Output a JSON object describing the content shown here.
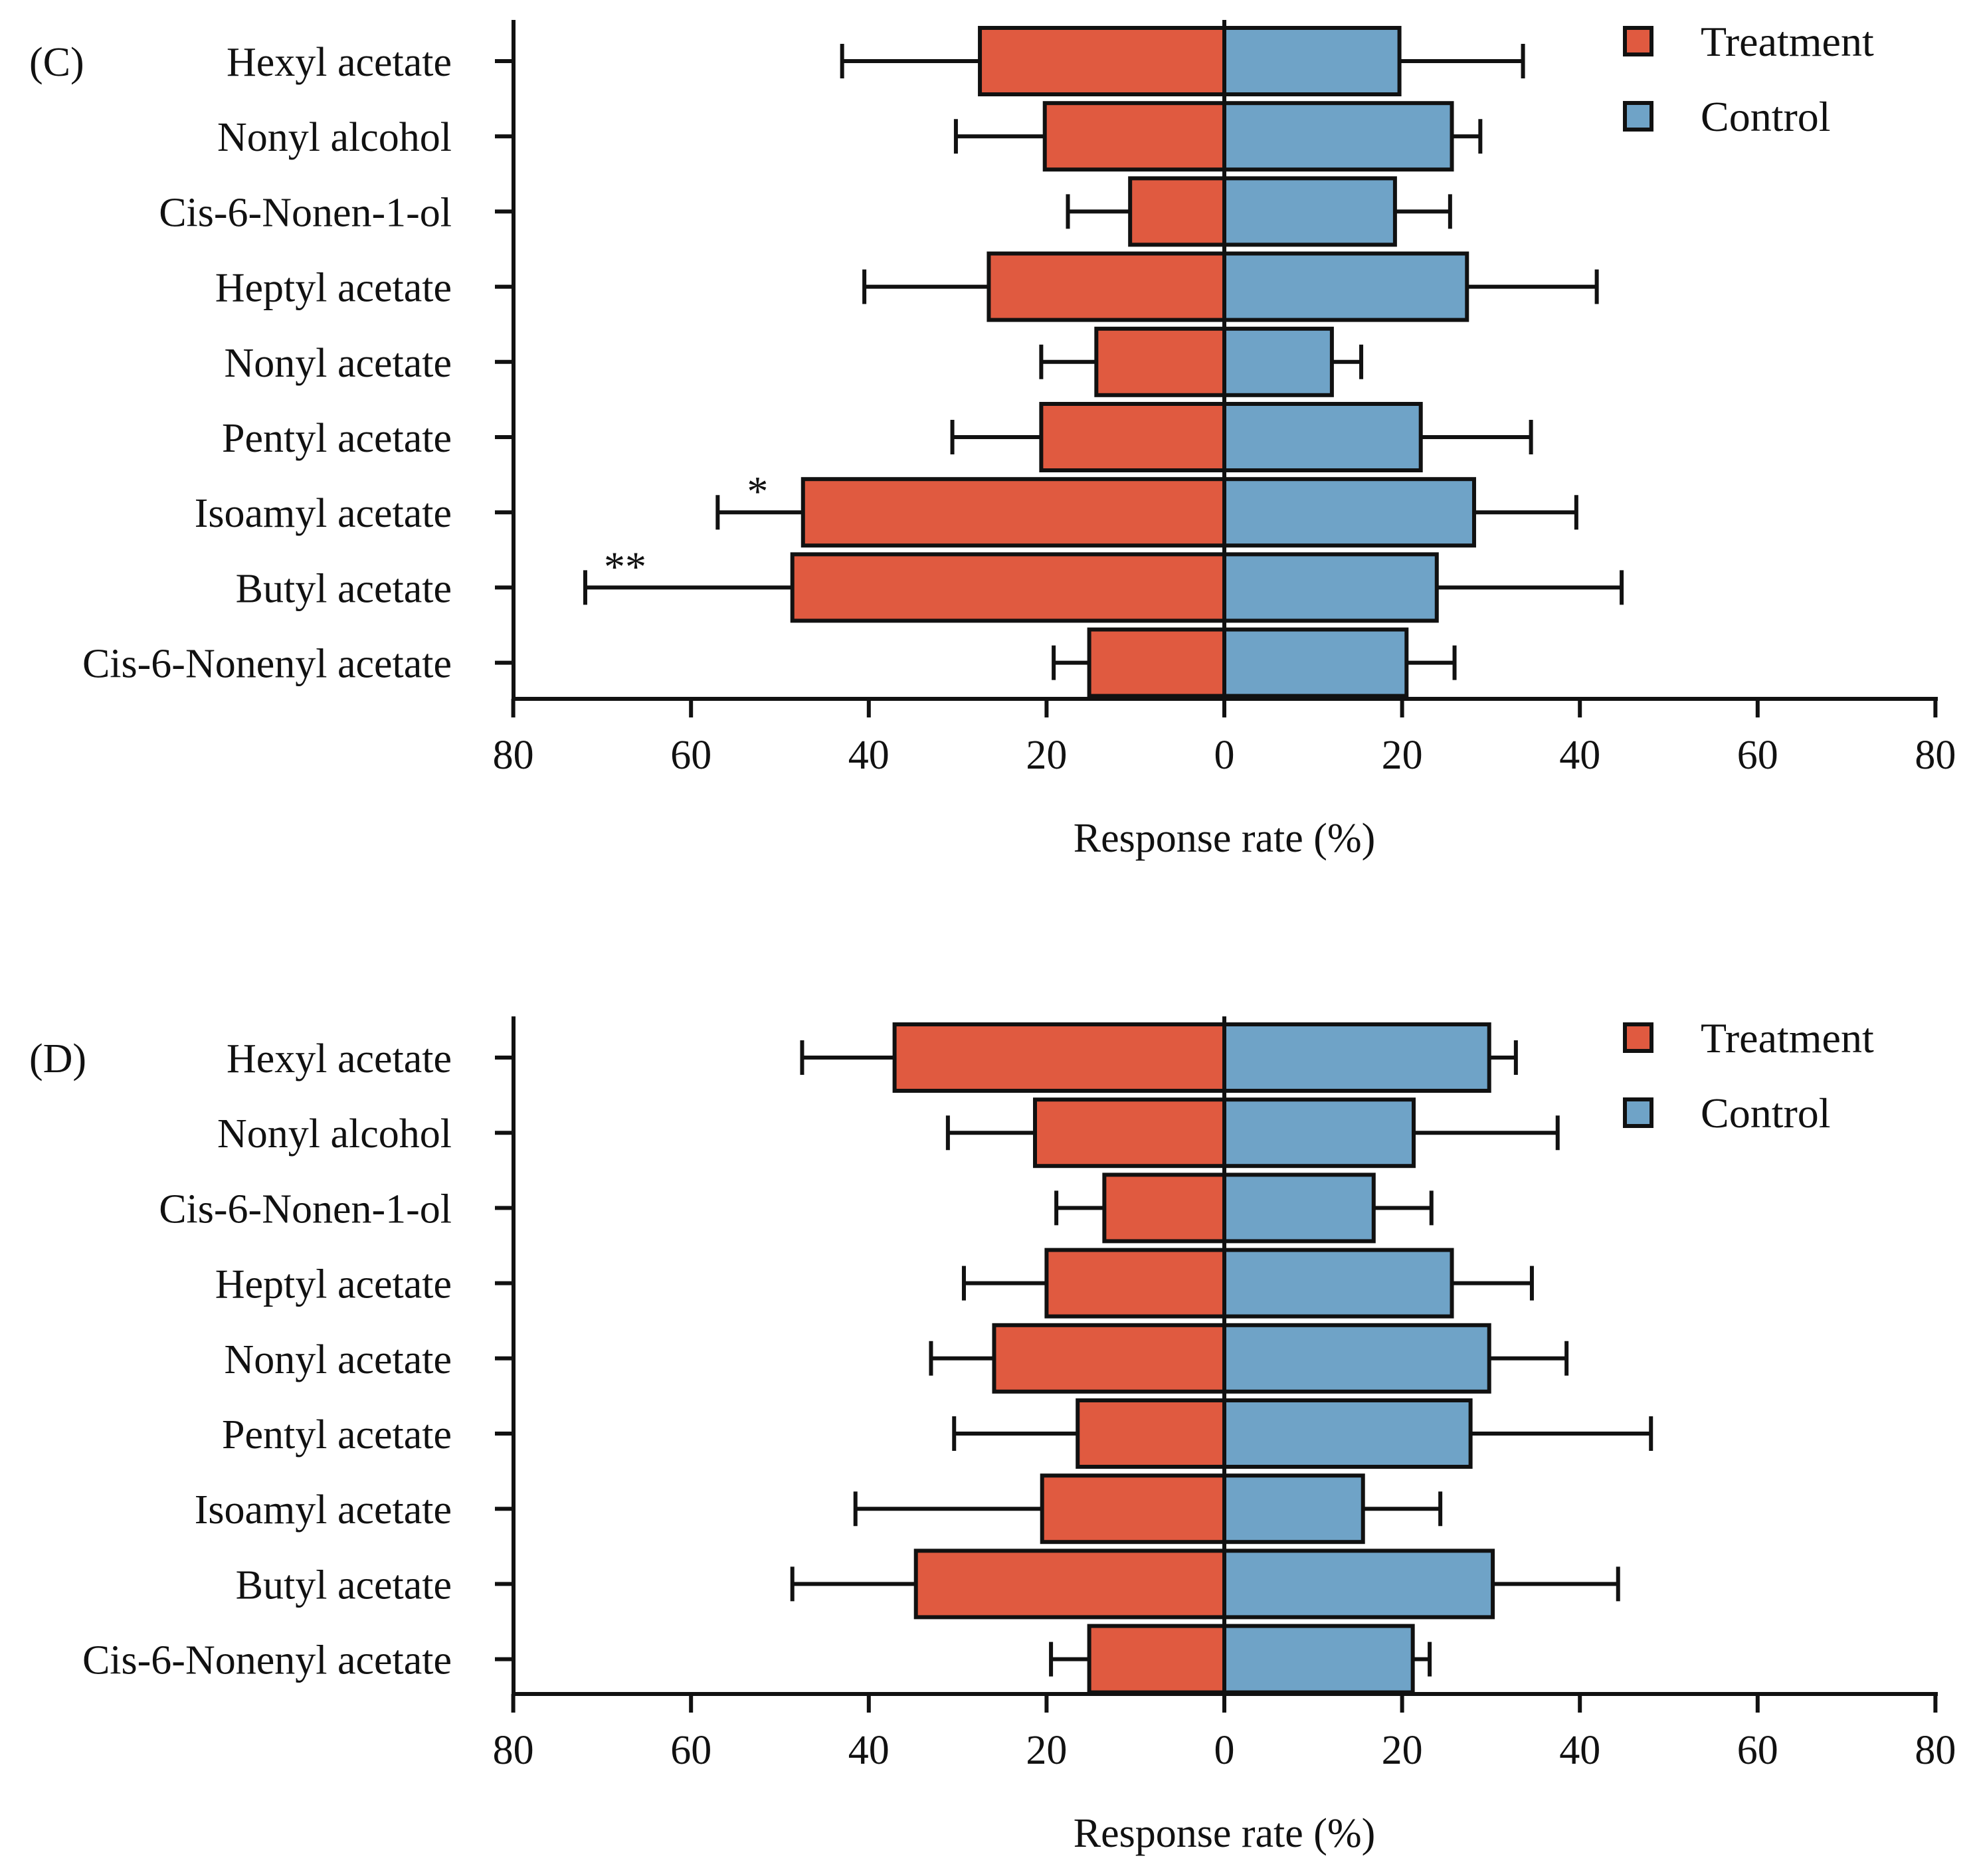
{
  "chart_data": [
    {
      "type": "bar",
      "orientation": "horizontal-diverging",
      "panel_label": "(C)",
      "categories": [
        "Hexyl acetate",
        "Nonyl alcohol",
        "Cis-6-Nonen-1-ol",
        "Heptyl acetate",
        "Nonyl acetate",
        "Pentyl acetate",
        "Isoamyl acetate",
        "Butyl acetate",
        "Cis-6-Nonenyl acetate"
      ],
      "series": [
        {
          "name": "Treatment",
          "color": "#e05a40",
          "values": [
            27.5,
            20.2,
            10.6,
            26.5,
            14.4,
            20.6,
            47.4,
            48.6,
            15.2
          ],
          "errors": [
            15.5,
            10.0,
            7.0,
            14.0,
            6.2,
            10.0,
            9.6,
            23.3,
            4.0
          ]
        },
        {
          "name": "Control",
          "color": "#6fa3c7",
          "values": [
            19.7,
            25.6,
            19.2,
            27.3,
            12.1,
            22.1,
            28.1,
            23.9,
            20.5
          ],
          "errors": [
            13.9,
            3.2,
            6.2,
            14.6,
            3.3,
            12.4,
            11.5,
            20.8,
            5.4
          ]
        }
      ],
      "annotations": [
        {
          "category": "Isoamyl acetate",
          "text": "*"
        },
        {
          "category": "Butyl acetate",
          "text": "**"
        }
      ],
      "xlabel": "Response rate (%)",
      "xlim": [
        -80,
        80
      ],
      "ticks": [
        -80,
        -60,
        -40,
        -20,
        0,
        20,
        40,
        60,
        80
      ],
      "tick_labels": [
        "80",
        "60",
        "40",
        "20",
        "0",
        "20",
        "40",
        "60",
        "80"
      ],
      "legend": [
        "Treatment",
        "Control"
      ],
      "legend_position": "top-right"
    },
    {
      "type": "bar",
      "orientation": "horizontal-diverging",
      "panel_label": "(D)",
      "categories": [
        "Hexyl acetate",
        "Nonyl alcohol",
        "Cis-6-Nonen-1-ol",
        "Heptyl acetate",
        "Nonyl acetate",
        "Pentyl acetate",
        "Isoamyl acetate",
        "Butyl acetate",
        "Cis-6-Nonenyl acetate"
      ],
      "series": [
        {
          "name": "Treatment",
          "color": "#e05a40",
          "values": [
            37.1,
            21.3,
            13.5,
            20.0,
            25.9,
            16.5,
            20.5,
            34.7,
            15.2
          ],
          "errors": [
            10.4,
            9.8,
            5.4,
            9.3,
            7.1,
            13.9,
            21.0,
            13.9,
            4.3
          ]
        },
        {
          "name": "Control",
          "color": "#6fa3c7",
          "values": [
            29.8,
            21.3,
            16.8,
            25.6,
            29.8,
            27.7,
            15.6,
            30.2,
            21.2
          ],
          "errors": [
            3.0,
            16.2,
            6.5,
            9.0,
            8.7,
            20.3,
            8.7,
            14.1,
            1.9
          ]
        }
      ],
      "annotations": [],
      "xlabel": "Response rate (%)",
      "xlim": [
        -80,
        80
      ],
      "ticks": [
        -80,
        -60,
        -40,
        -20,
        0,
        20,
        40,
        60,
        80
      ],
      "tick_labels": [
        "80",
        "60",
        "40",
        "20",
        "0",
        "20",
        "40",
        "60",
        "80"
      ],
      "legend": [
        "Treatment",
        "Control"
      ],
      "legend_position": "top-right"
    }
  ]
}
